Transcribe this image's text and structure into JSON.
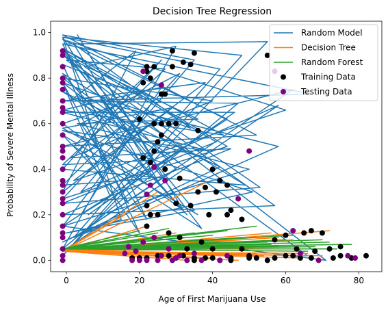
{
  "chart_data": {
    "type": "line",
    "title": "Decision Tree Regression",
    "xlabel": "Age of First Marijuana Use",
    "ylabel": "Probability of Severe Mental Illness",
    "xlim": [
      -4.3,
      86.3
    ],
    "ylim": [
      -0.05,
      1.05
    ],
    "xticks": [
      0,
      20,
      40,
      60,
      80
    ],
    "yticks": [
      0.0,
      0.2,
      0.4,
      0.6,
      0.8,
      1.0
    ],
    "xtick_labels": [
      "0",
      "20",
      "40",
      "60",
      "80"
    ],
    "ytick_labels": [
      "0.0",
      "0.2",
      "0.4",
      "0.6",
      "0.8",
      "1.0"
    ],
    "grid": false,
    "legend_position": "top-right",
    "series": [
      {
        "name": "Random Model",
        "kind": "line",
        "color": "#1f77b4",
        "x": [
          -1,
          55,
          -1,
          48,
          -1,
          42,
          2,
          62,
          -1,
          52,
          -1,
          35,
          4,
          58,
          -1,
          66,
          -1,
          40,
          1,
          45,
          -1,
          57,
          -1,
          36,
          3,
          50,
          -1,
          44,
          -1,
          60,
          2,
          38,
          -1,
          47,
          -1,
          30,
          5,
          53,
          -1,
          41,
          -1,
          35,
          0,
          51,
          -1,
          39,
          -1,
          46,
          6,
          28,
          -1,
          42,
          -1,
          58,
          3,
          33,
          -1,
          49,
          -1,
          26,
          2,
          37,
          -1,
          44,
          -1,
          31,
          4,
          22,
          -1,
          67,
          1,
          19,
          -1,
          29,
          -1,
          25,
          2,
          34,
          -1,
          18,
          -1,
          71,
          0,
          27,
          -1,
          24,
          3,
          32,
          -1,
          21,
          -1,
          20,
          5,
          16,
          -1,
          23,
          -1,
          15,
          2,
          30,
          -1,
          43,
          -1,
          26,
          4,
          12,
          -1,
          17,
          -1,
          36
        ],
        "y": [
          0.95,
          0.96,
          0.02,
          0.9,
          0.98,
          0.84,
          0.1,
          0.75,
          0.5,
          0.55,
          0.99,
          0.88,
          0.3,
          0.68,
          0.04,
          0.02,
          0.8,
          0.7,
          0.45,
          0.49,
          0.2,
          0.24,
          0.9,
          0.62,
          0.6,
          0.4,
          0.15,
          0.62,
          0.97,
          0.66,
          0.35,
          0.78,
          0.7,
          0.69,
          0.05,
          0.94,
          0.85,
          0.32,
          0.25,
          0.52,
          0.92,
          0.22,
          0.12,
          0.3,
          0.57,
          0.48,
          0.65,
          0.65,
          0.2,
          0.45,
          0.74,
          0.41,
          0.08,
          0.5,
          0.72,
          0.2,
          0.82,
          0.33,
          0.4,
          0.88,
          0.5,
          0.14,
          0.93,
          0.5,
          0.27,
          0.82,
          0.6,
          0.18,
          0.95,
          0.73,
          0.7,
          0.92,
          0.3,
          0.67,
          0.58,
          0.35,
          0.95,
          0.58,
          0.78,
          0.55,
          0.15,
          0.0,
          0.88,
          0.84,
          0.42,
          0.44,
          0.99,
          0.22,
          0.6,
          0.72,
          0.86,
          0.12,
          0.47,
          0.6,
          0.33,
          0.36,
          0.98,
          0.18,
          0.1,
          0.4,
          0.93,
          0.55,
          0.66,
          0.76,
          0.2,
          0.28,
          0.78,
          0.25,
          0.55,
          0.2
        ]
      },
      {
        "name": "Decision Tree",
        "kind": "line",
        "color": "#ff7f0e",
        "x": [
          -1,
          38,
          -1,
          25,
          -1,
          16,
          -1,
          72,
          -1,
          60,
          -1,
          52,
          -1,
          68,
          -1,
          44,
          -1,
          33,
          -1,
          56,
          -1,
          28,
          -1,
          64,
          -1,
          49,
          -1,
          41,
          -1,
          70,
          -1,
          36,
          -1,
          58,
          -1,
          22,
          -1,
          47,
          -1,
          66,
          -1,
          30,
          -1,
          54,
          -1,
          62,
          -1,
          20,
          -1,
          40
        ],
        "y": [
          0.04,
          0.34,
          0.04,
          0.3,
          0.04,
          0.2,
          0.04,
          0.13,
          0.04,
          0.11,
          0.04,
          0.03,
          0.04,
          0.06,
          0.04,
          0.09,
          0.04,
          0.0,
          0.04,
          0.12,
          0.04,
          0.02,
          0.04,
          0.01,
          0.04,
          0.07,
          0.04,
          0.05,
          0.04,
          0.02,
          0.04,
          0.08,
          0.04,
          0.1,
          0.04,
          0.15,
          0.04,
          0.0,
          0.04,
          0.03,
          0.04,
          0.12,
          0.04,
          0.02,
          0.04,
          0.09,
          0.04,
          0.05,
          0.04,
          0.01
        ]
      },
      {
        "name": "Random Forest",
        "kind": "line",
        "color": "#2ca02c",
        "x": [
          -1,
          52,
          -1,
          78,
          -1,
          62,
          -1,
          44,
          -1,
          70,
          -1,
          58,
          -1,
          35,
          -1,
          66,
          -1,
          48,
          -1,
          28,
          -1,
          55,
          -1,
          40,
          -1,
          74,
          -1,
          60,
          -1,
          32,
          -1,
          50,
          -1,
          68,
          -1,
          42,
          -1,
          25,
          -1,
          64,
          -1,
          38,
          -1,
          56,
          -1,
          20,
          -1,
          46,
          -1,
          72
        ],
        "y": [
          0.05,
          0.15,
          0.05,
          0.07,
          0.05,
          0.11,
          0.05,
          0.13,
          0.05,
          0.09,
          0.05,
          0.06,
          0.05,
          0.12,
          0.05,
          0.04,
          0.05,
          0.1,
          0.05,
          0.14,
          0.05,
          0.08,
          0.05,
          0.11,
          0.05,
          0.05,
          0.05,
          0.09,
          0.05,
          0.1,
          0.05,
          0.07,
          0.05,
          0.06,
          0.05,
          0.08,
          0.05,
          0.12,
          0.05,
          0.06,
          0.05,
          0.09,
          0.05,
          0.07,
          0.05,
          0.13,
          0.05,
          0.06,
          0.05,
          0.08
        ]
      },
      {
        "name": "Training Data",
        "kind": "scatter",
        "color": "#000000",
        "x": [
          29,
          35,
          29,
          24,
          20,
          25,
          26,
          21,
          22,
          22,
          23,
          24,
          28,
          30,
          32,
          34,
          26,
          27,
          36,
          40,
          42,
          44,
          38,
          36,
          30,
          25,
          23,
          22,
          45,
          48,
          40,
          37,
          33,
          31,
          28,
          22,
          48,
          55,
          57,
          60,
          62,
          65,
          67,
          70,
          72,
          75,
          78,
          82,
          75,
          73,
          67,
          64,
          60,
          57,
          55,
          52,
          50,
          45,
          42,
          38,
          35,
          30,
          22,
          20,
          18,
          25,
          28,
          32,
          35,
          40,
          45,
          50,
          26,
          24,
          34,
          39,
          21,
          23,
          27,
          31,
          41,
          44,
          63,
          68
        ],
        "y": [
          0.92,
          0.91,
          0.85,
          0.6,
          0.62,
          0.52,
          0.6,
          0.78,
          0.83,
          0.85,
          0.8,
          0.85,
          0.6,
          0.6,
          0.87,
          0.86,
          0.73,
          0.73,
          0.57,
          0.4,
          0.35,
          0.33,
          0.32,
          0.3,
          0.25,
          0.2,
          0.2,
          0.24,
          0.22,
          0.18,
          0.05,
          0.08,
          0.05,
          0.1,
          0.12,
          0.15,
          0.05,
          0.9,
          0.09,
          0.11,
          0.02,
          0.12,
          0.13,
          0.12,
          0.05,
          0.06,
          0.01,
          0.02,
          0.02,
          0.01,
          0.01,
          0.01,
          0.02,
          0.01,
          0.0,
          0.01,
          0.02,
          0.0,
          0.0,
          0.01,
          0.01,
          0.01,
          0.01,
          0.01,
          0.01,
          0.02,
          0.02,
          0.02,
          0.0,
          0.01,
          0.01,
          0.01,
          0.55,
          0.48,
          0.24,
          0.2,
          0.45,
          0.43,
          0.4,
          0.36,
          0.3,
          0.2,
          0.05,
          0.04
        ]
      },
      {
        "name": "Testing Data",
        "kind": "scatter",
        "color": "#800080",
        "x": [
          -1,
          -1,
          -1,
          -1,
          -1,
          -1,
          -1,
          -1,
          -1,
          -1,
          -1,
          -1,
          -1,
          -1,
          -1,
          -1,
          -1,
          -1,
          -1,
          -1,
          -1,
          -1,
          -1,
          -1,
          -1,
          -1,
          -1,
          26,
          21,
          50,
          57,
          47,
          27,
          23,
          18,
          20,
          22,
          25,
          29,
          33,
          37,
          42,
          17,
          19,
          21,
          24,
          28,
          31,
          35,
          62,
          64,
          77,
          79,
          69,
          44,
          30,
          26,
          16,
          24,
          22
        ],
        "y": [
          0.92,
          0.9,
          0.85,
          0.8,
          0.75,
          0.7,
          0.65,
          0.6,
          0.55,
          0.5,
          0.45,
          0.4,
          0.35,
          0.3,
          0.25,
          0.2,
          0.15,
          0.1,
          0.05,
          0.02,
          0.0,
          0.48,
          0.67,
          0.78,
          0.33,
          0.27,
          0.12,
          0.77,
          0.83,
          0.48,
          0.83,
          0.27,
          0.35,
          0.33,
          0.0,
          0.0,
          0.0,
          0.0,
          0.0,
          0.0,
          0.0,
          0.0,
          0.06,
          0.04,
          0.08,
          0.1,
          0.05,
          0.02,
          0.03,
          0.13,
          0.03,
          0.02,
          0.01,
          0.0,
          0.02,
          0.01,
          0.02,
          0.03,
          0.41,
          0.29
        ]
      }
    ]
  }
}
